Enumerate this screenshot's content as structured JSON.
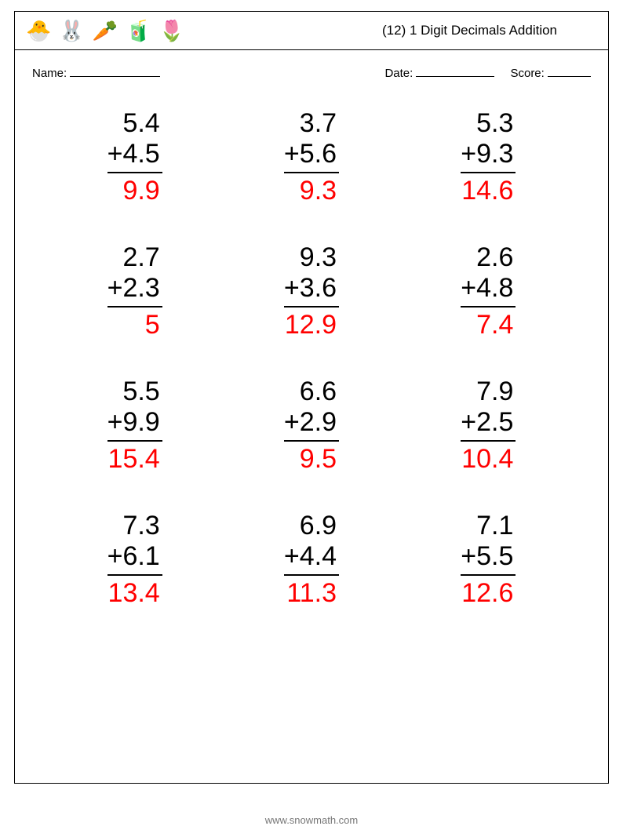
{
  "header": {
    "icons": [
      "🐣",
      "🐰",
      "🥕",
      "🧃",
      "🌷"
    ],
    "title": "(12) 1 Digit Decimals Addition"
  },
  "meta": {
    "name_label": "Name:",
    "date_label": "Date:",
    "score_label": "Score:"
  },
  "style": {
    "answer_color": "#ff0000",
    "text_color": "#000000",
    "problem_fontsize": 34,
    "rule_color": "#000000"
  },
  "problems": [
    {
      "a": "5.4",
      "b": "4.5",
      "ans": "9.9"
    },
    {
      "a": "3.7",
      "b": "5.6",
      "ans": "9.3"
    },
    {
      "a": "5.3",
      "b": "9.3",
      "ans": "14.6"
    },
    {
      "a": "2.7",
      "b": "2.3",
      "ans": "5"
    },
    {
      "a": "9.3",
      "b": "3.6",
      "ans": "12.9"
    },
    {
      "a": "2.6",
      "b": "4.8",
      "ans": "7.4"
    },
    {
      "a": "5.5",
      "b": "9.9",
      "ans": "15.4"
    },
    {
      "a": "6.6",
      "b": "2.9",
      "ans": "9.5"
    },
    {
      "a": "7.9",
      "b": "2.5",
      "ans": "10.4"
    },
    {
      "a": "7.3",
      "b": "6.1",
      "ans": "13.4"
    },
    {
      "a": "6.9",
      "b": "4.4",
      "ans": "11.3"
    },
    {
      "a": "7.1",
      "b": "5.5",
      "ans": "12.6"
    }
  ],
  "footer": "www.snowmath.com"
}
